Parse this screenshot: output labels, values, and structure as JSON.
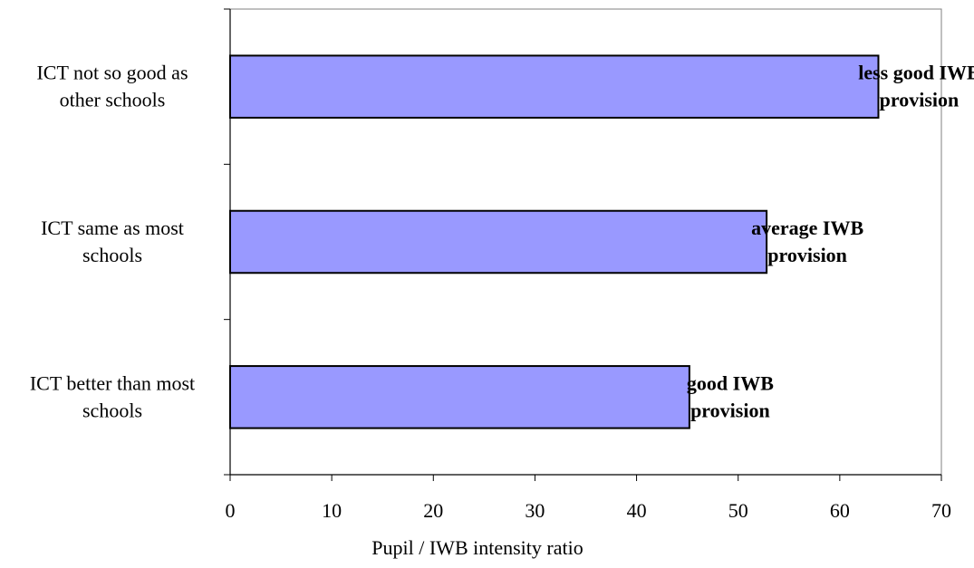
{
  "chart_data": {
    "type": "bar",
    "orientation": "horizontal",
    "categories": [
      [
        "ICT not so good as",
        "other schools"
      ],
      [
        "ICT same as most",
        "schools"
      ],
      [
        "ICT better than most",
        "schools"
      ]
    ],
    "values": [
      63.8,
      52.8,
      45.2
    ],
    "annotations": [
      [
        "less good IWB",
        "provision"
      ],
      [
        "average IWB",
        "provision"
      ],
      [
        "good IWB",
        "provision"
      ]
    ],
    "xlabel": "Pupil / IWB intensity ratio",
    "ylabel": "",
    "xlim": [
      0,
      70
    ],
    "xticks": [
      0,
      10,
      20,
      30,
      40,
      50,
      60,
      70
    ],
    "grid": false,
    "legend": "none",
    "colors": {
      "bar_fill": "#9999ff",
      "bar_stroke": "#000000",
      "plot_border": "#808080",
      "axis": "#000000"
    }
  }
}
